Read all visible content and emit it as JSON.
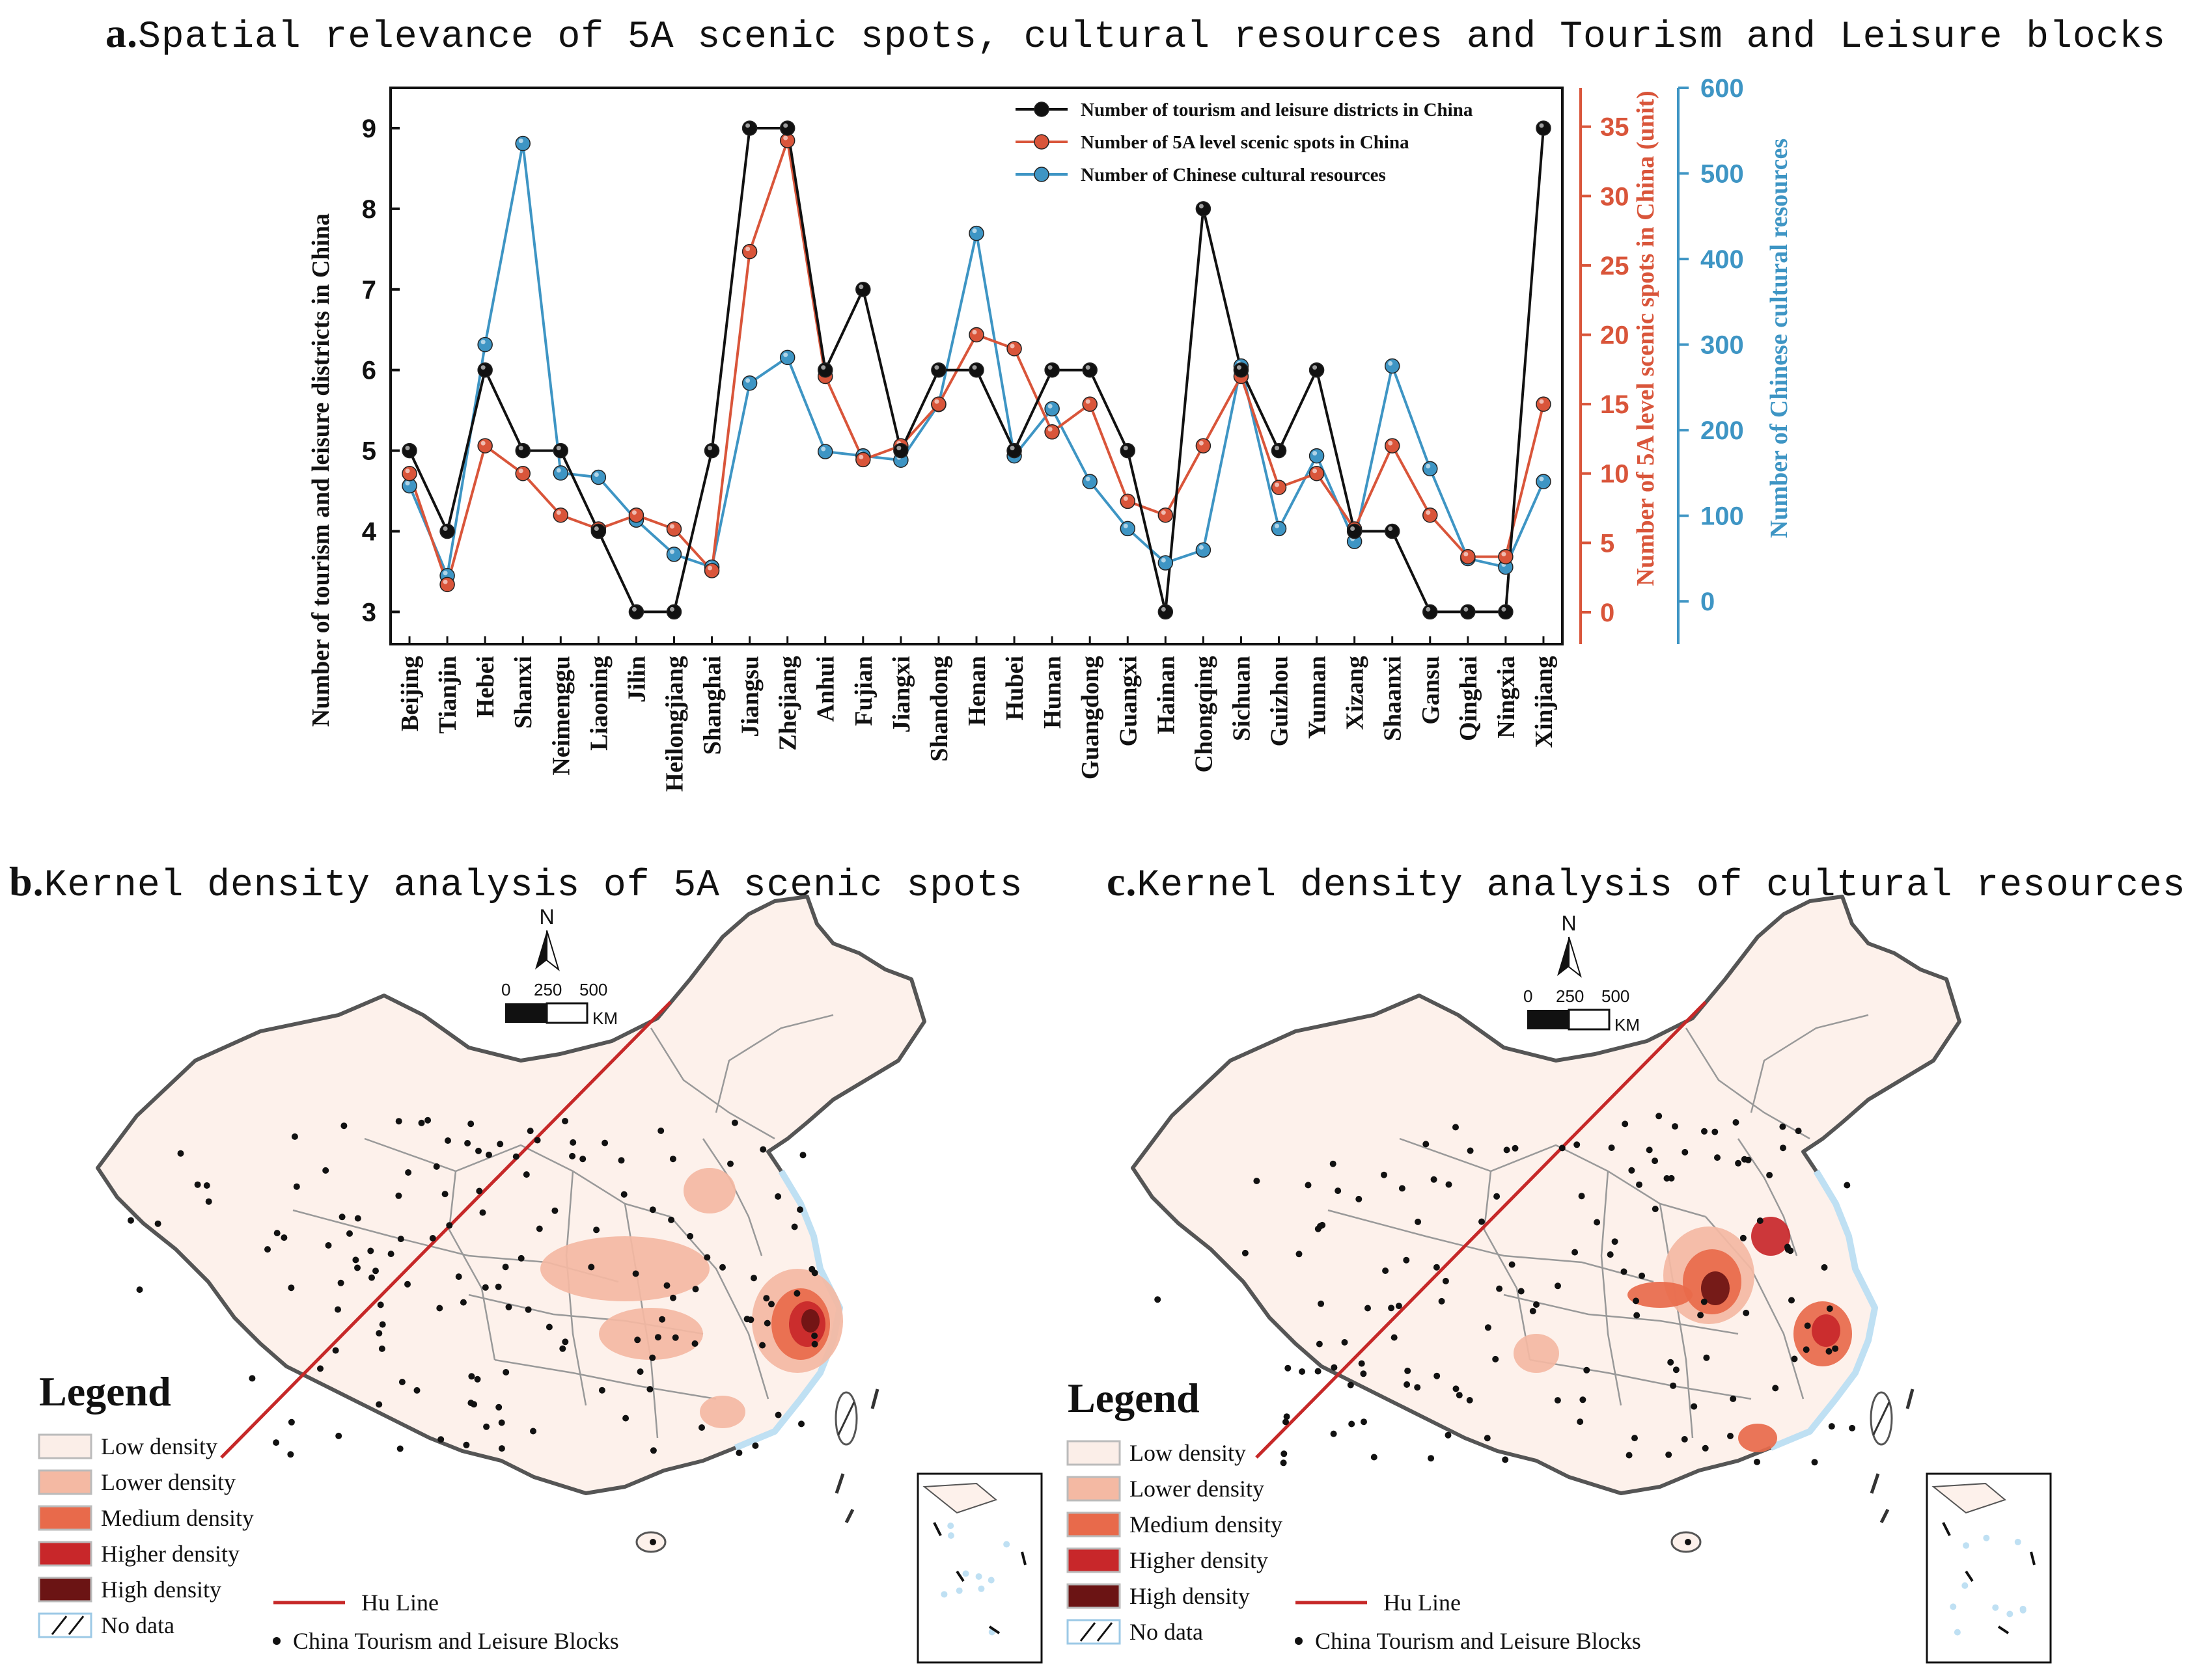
{
  "panels": {
    "a": {
      "letter": "a.",
      "title": "Spatial relevance of 5A scenic spots, cultural resources and Tourism and Leisure blocks"
    },
    "b": {
      "letter": "b.",
      "title": "Kernel density analysis of 5A scenic spots"
    },
    "c": {
      "letter": "c.",
      "title": "Kernel density analysis of cultural resources"
    }
  },
  "chart_data": {
    "type": "line",
    "categories": [
      "Beijing",
      "Tianjin",
      "Hebei",
      "Shanxi",
      "Neimenggu",
      "Liaoning",
      "Jilin",
      "Heilongjiang",
      "Shanghai",
      "Jiangsu",
      "Zhejiang",
      "Anhui",
      "Fujian",
      "Jiangxi",
      "Shandong",
      "Henan",
      "Hubei",
      "Hunan",
      "Guangdong",
      "Guangxi",
      "Hainan",
      "Chongqing",
      "Sichuan",
      "Guizhou",
      "Yunnan",
      "Xizang",
      "Shaanxi",
      "Gansu",
      "Qinghai",
      "Ningxia",
      "Xinjiang"
    ],
    "series": [
      {
        "name": "Number of tourism and leisure districts in China",
        "axis": "left",
        "color": "#111111",
        "values": [
          5,
          4,
          6,
          5,
          5,
          4,
          3,
          3,
          5,
          9,
          9,
          6,
          7,
          5,
          6,
          6,
          5,
          6,
          6,
          5,
          3,
          8,
          6,
          5,
          6,
          4,
          4,
          3,
          3,
          3,
          9
        ]
      },
      {
        "name": "Number of 5A level scenic spots in China",
        "axis": "right1",
        "color": "#d9553a",
        "values": [
          10,
          2,
          12,
          10,
          7,
          6,
          7,
          6,
          3,
          26,
          34,
          17,
          11,
          12,
          15,
          20,
          19,
          13,
          15,
          8,
          7,
          12,
          17,
          9,
          10,
          6,
          12,
          7,
          4,
          4,
          15
        ]
      },
      {
        "name": "Number of Chinese cultural resources",
        "axis": "right2",
        "color": "#3e95c4",
        "values": [
          135,
          30,
          300,
          535,
          150,
          145,
          95,
          55,
          40,
          255,
          285,
          175,
          170,
          165,
          230,
          430,
          170,
          225,
          140,
          85,
          45,
          60,
          275,
          85,
          170,
          70,
          275,
          155,
          50,
          40,
          140
        ]
      }
    ],
    "axes": {
      "left": {
        "label": "Number of tourism and leisure districts in China",
        "range": [
          2.6,
          9.5
        ],
        "ticks": [
          3,
          4,
          5,
          6,
          7,
          8,
          9
        ]
      },
      "right1": {
        "label": "Number of 5A level scenic spots in China (unit)",
        "range": [
          -2.3,
          37.8
        ],
        "ticks": [
          0,
          5,
          10,
          15,
          20,
          25,
          30,
          35
        ]
      },
      "right2": {
        "label": "Number of Chinese cultural resources",
        "range": [
          -50,
          600
        ],
        "ticks": [
          0,
          100,
          200,
          300,
          400,
          500,
          600
        ]
      }
    },
    "legend_position": "top-right"
  },
  "maps": {
    "b": {
      "north": "N",
      "scale_labels": [
        "0",
        "250",
        "500"
      ],
      "scale_unit": "KM",
      "legend": {
        "title": "Legend",
        "items": [
          {
            "label": "Low density",
            "color": "#fbeee8"
          },
          {
            "label": "Lower density",
            "color": "#f4b9a3"
          },
          {
            "label": "Medium density",
            "color": "#e86a4b"
          },
          {
            "label": "Higher density",
            "color": "#c8272a"
          },
          {
            "label": "High density",
            "color": "#6b1414"
          },
          {
            "label": "No data",
            "color": "#ffffff"
          }
        ],
        "line_label": "Hu Line",
        "point_label": "China Tourism and Leisure Blocks"
      }
    },
    "c": {
      "north": "N",
      "scale_labels": [
        "0",
        "250",
        "500"
      ],
      "scale_unit": "KM",
      "legend": {
        "title": "Legend",
        "items": [
          {
            "label": "Low density",
            "color": "#fbeee8"
          },
          {
            "label": "Lower density",
            "color": "#f4b9a3"
          },
          {
            "label": "Medium density",
            "color": "#e86a4b"
          },
          {
            "label": "Higher density",
            "color": "#c8272a"
          },
          {
            "label": "High density",
            "color": "#6b1414"
          },
          {
            "label": "No data",
            "color": "#ffffff"
          }
        ],
        "line_label": "Hu Line",
        "point_label": "China Tourism and Leisure Blocks"
      }
    }
  },
  "colors": {
    "hu_line": "#c62828",
    "map_fill": "#fdf1eb",
    "sea": "#bfe0f3",
    "border": "#777777"
  }
}
